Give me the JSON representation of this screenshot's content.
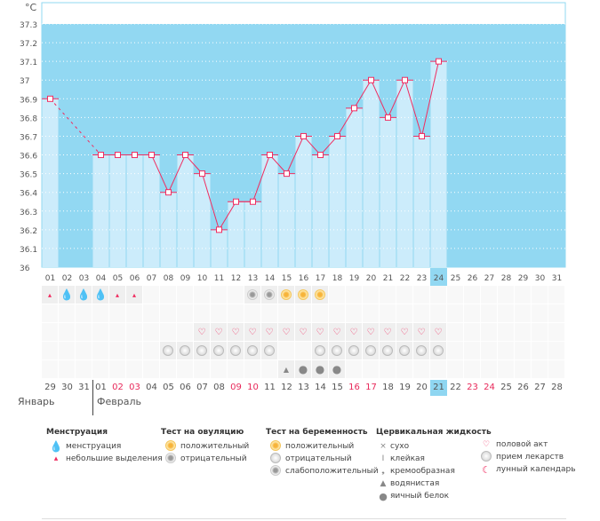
{
  "chart_data": {
    "type": "line",
    "title": "",
    "ylabel": "°C",
    "ylim": [
      36,
      37.3
    ],
    "yticks": [
      "36",
      "36.1",
      "36.2",
      "36.3",
      "36.4",
      "36.5",
      "36.6",
      "36.7",
      "36.8",
      "36.9",
      "37",
      "37.1",
      "37.2",
      "37.3"
    ],
    "days": [
      "01",
      "02",
      "03",
      "04",
      "05",
      "06",
      "07",
      "08",
      "09",
      "10",
      "11",
      "12",
      "13",
      "14",
      "15",
      "16",
      "17",
      "18",
      "19",
      "20",
      "21",
      "22",
      "23",
      "24",
      "25",
      "26",
      "27",
      "28",
      "29",
      "30",
      "31"
    ],
    "values": [
      36.9,
      null,
      null,
      36.6,
      36.6,
      36.6,
      36.6,
      36.4,
      36.6,
      36.5,
      36.2,
      36.35,
      36.35,
      36.6,
      36.5,
      36.7,
      36.6,
      36.7,
      36.85,
      37.0,
      36.8,
      37.0,
      36.7,
      37.1,
      null,
      null,
      null,
      null,
      null,
      null,
      null
    ],
    "current_day": "24"
  },
  "colors": {
    "plot_bg": "#92d8f2",
    "bar": "#ccecfb",
    "line": "#f02c60"
  },
  "calendar": {
    "dates": [
      "29",
      "30",
      "31",
      "01",
      "02",
      "03",
      "04",
      "05",
      "06",
      "07",
      "08",
      "09",
      "10",
      "11",
      "12",
      "13",
      "14",
      "15",
      "16",
      "17",
      "18",
      "19",
      "20",
      "21",
      "22",
      "23",
      "24",
      "25",
      "26",
      "27",
      "28"
    ],
    "red": [
      4,
      5,
      11,
      12,
      18,
      19,
      25,
      26
    ],
    "today_index": 23,
    "months": [
      "Январь",
      "Февраль"
    ],
    "menstruation": {
      "0": "small",
      "1": "big",
      "2": "big",
      "3": "big",
      "4": "small",
      "5": "small"
    },
    "ovulation": {
      "12": "neg",
      "13": "neg",
      "14": "pos",
      "15": "pos",
      "16": "pos"
    },
    "intercourse": [
      9,
      10,
      11,
      12,
      13,
      14,
      15,
      16,
      17,
      18,
      19,
      20,
      21,
      22,
      23
    ],
    "medication": [
      7,
      8,
      9,
      10,
      11,
      12,
      13,
      16,
      17,
      18,
      19,
      20,
      21,
      22,
      23
    ],
    "fluid": {
      "14": "watery",
      "15": "eggwhite",
      "16": "eggwhite",
      "17": "eggwhite"
    }
  },
  "legend": {
    "menstruation": {
      "title": "Менструация",
      "items": [
        "менструация",
        "небольшие выделения"
      ]
    },
    "ovulation": {
      "title": "Тест на овуляцию",
      "items": [
        "положительный",
        "отрицательный"
      ]
    },
    "pregnancy": {
      "title": "Тест на беременность",
      "items": [
        "положительный",
        "отрицательный",
        "слабоположительный"
      ]
    },
    "fluid": {
      "title": "Цервикальная жидкость",
      "items": [
        "сухо",
        "клейкая",
        "кремообразная",
        "водянистая",
        "яичный белок"
      ]
    },
    "other": {
      "items": [
        "половой акт",
        "прием лекарств",
        "лунный календарь"
      ]
    }
  }
}
